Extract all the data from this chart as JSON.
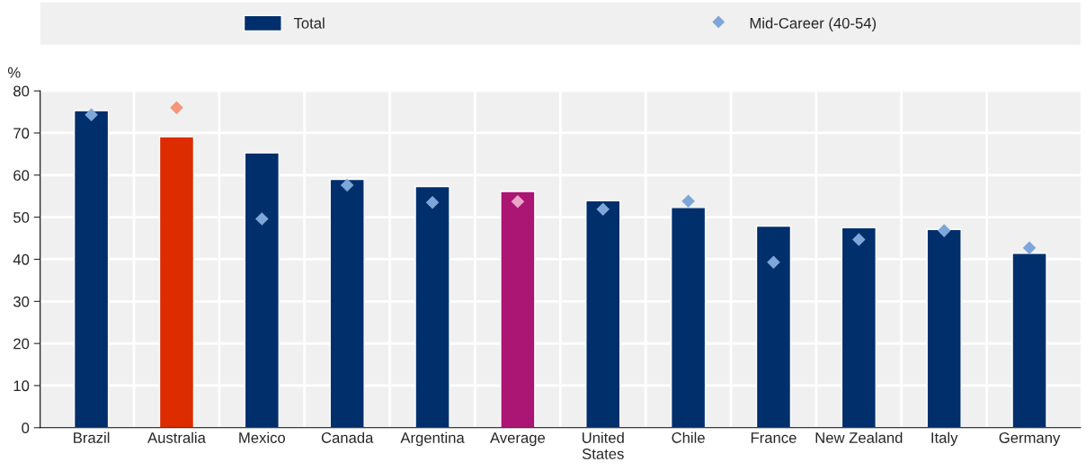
{
  "chart_data": {
    "type": "bar",
    "ylabel": "%",
    "categories": [
      "Brazil",
      "Australia",
      "Mexico",
      "Canada",
      "Argentina",
      "Average",
      "United States",
      "Chile",
      "France",
      "New Zealand",
      "Italy",
      "Germany"
    ],
    "series": [
      {
        "name": "Total",
        "color": "#002f6c",
        "colors": [
          "#002f6c",
          "#dc2c00",
          "#002f6c",
          "#002f6c",
          "#002f6c",
          "#ab1573",
          "#002f6c",
          "#002f6c",
          "#002f6c",
          "#002f6c",
          "#002f6c",
          "#002f6c"
        ],
        "values": [
          75.3,
          69.1,
          65.3,
          59.0,
          57.3,
          56.1,
          53.9,
          52.3,
          47.9,
          47.5,
          47.1,
          41.4
        ]
      },
      {
        "name": "Mid-Career (40-54)",
        "type": "scatter",
        "color": "#7ea6d9",
        "colors": [
          "#7ea6d9",
          "#f4967a",
          "#7ea6d9",
          "#7ea6d9",
          "#7ea6d9",
          "#eba5c9",
          "#7ea6d9",
          "#7ea6d9",
          "#7ea6d9",
          "#7ea6d9",
          "#7ea6d9",
          "#7ea6d9"
        ],
        "values": [
          74.3,
          76.0,
          49.6,
          57.6,
          53.5,
          53.7,
          51.9,
          53.8,
          39.3,
          44.7,
          46.8,
          42.7
        ]
      }
    ],
    "marker": "diamond",
    "ylim": [
      0,
      80
    ],
    "yticks": [
      0,
      10,
      20,
      30,
      40,
      50,
      60,
      70,
      80
    ],
    "grid": true,
    "legend": "top"
  }
}
